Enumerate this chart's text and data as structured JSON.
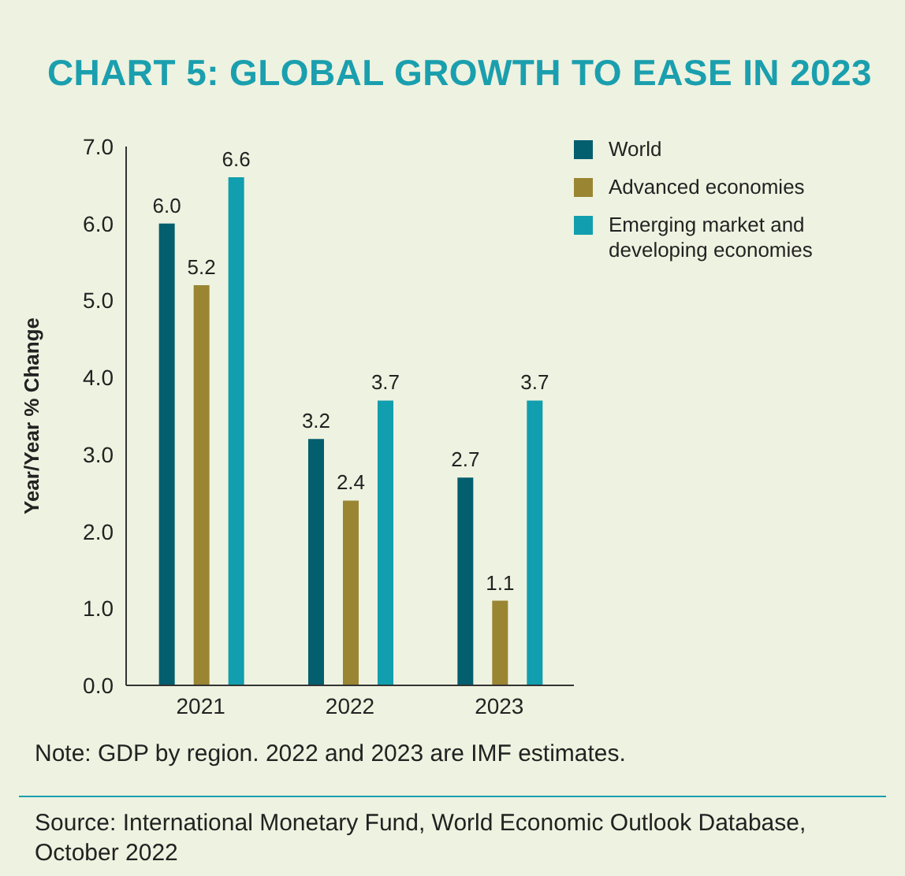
{
  "chart_data": {
    "type": "bar",
    "title": "CHART 5: GLOBAL GROWTH TO EASE IN 2023",
    "ylabel": "Year/Year % Change",
    "categories": [
      "2021",
      "2022",
      "2023"
    ],
    "series": [
      {
        "name": "World",
        "color": "#035e6e",
        "values": [
          6.0,
          3.2,
          2.7
        ],
        "value_labels": [
          "6.0",
          "3.2",
          "2.7"
        ]
      },
      {
        "name": "Advanced economies",
        "color": "#9a8533",
        "values": [
          5.2,
          2.4,
          1.1
        ],
        "value_labels": [
          "5.2",
          "2.4",
          "1.1"
        ]
      },
      {
        "name": "Emerging market and developing economies",
        "color": "#119eae",
        "values": [
          6.6,
          3.7,
          3.7
        ],
        "value_labels": [
          "6.6",
          "3.7",
          "3.7"
        ]
      }
    ],
    "ylim": [
      0,
      7
    ],
    "yticks": [
      {
        "value": 0,
        "label": "0.0"
      },
      {
        "value": 1,
        "label": "1.0"
      },
      {
        "value": 2,
        "label": "2.0"
      },
      {
        "value": 3,
        "label": "3.0"
      },
      {
        "value": 4,
        "label": "4.0"
      },
      {
        "value": 5,
        "label": "5.0"
      },
      {
        "value": 6,
        "label": "6.0"
      },
      {
        "value": 7,
        "label": "7.0"
      }
    ],
    "legend": "top right",
    "annotations": [
      "Note: GDP by region. 2022 and 2023 are IMF estimates.",
      "Source: International Monetary Fund, World Economic Outlook Database, October 2022"
    ]
  }
}
